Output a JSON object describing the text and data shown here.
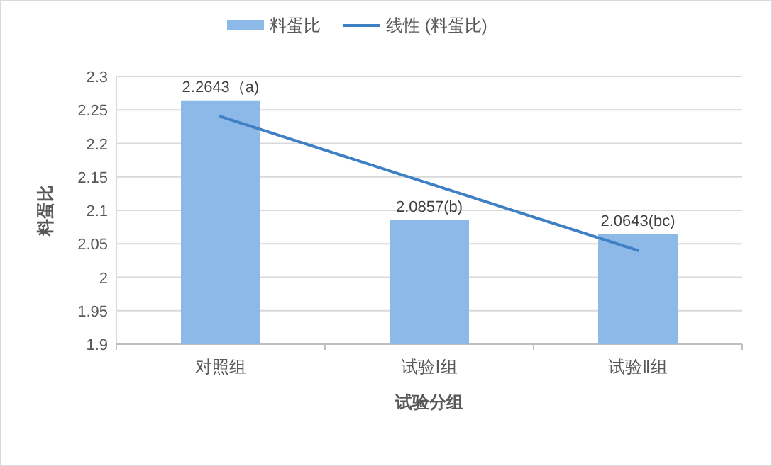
{
  "chart_data": {
    "type": "bar",
    "xlabel": "试验分组",
    "ylabel": "料蛋比",
    "categories": [
      "对照组",
      "试验Ⅰ组",
      "试验Ⅱ组"
    ],
    "series": [
      {
        "name": "料蛋比",
        "color": "#8db9e8",
        "values": [
          2.2643,
          2.0857,
          2.0643
        ],
        "value_labels": [
          "2.2643（a)",
          "2.0857(b)",
          "2.0643(bc)"
        ]
      },
      {
        "name": "线性 (料蛋比)",
        "type": "line",
        "color": "#3f7fc4",
        "values": [
          2.24,
          2.14,
          2.04
        ]
      }
    ],
    "ylim": [
      1.9,
      2.3
    ],
    "yticks": [
      1.9,
      1.95,
      2,
      2.05,
      2.1,
      2.15,
      2.2,
      2.25,
      2.3
    ],
    "grid": "y",
    "legend": "top",
    "marker": "none",
    "line_style": "solid"
  }
}
